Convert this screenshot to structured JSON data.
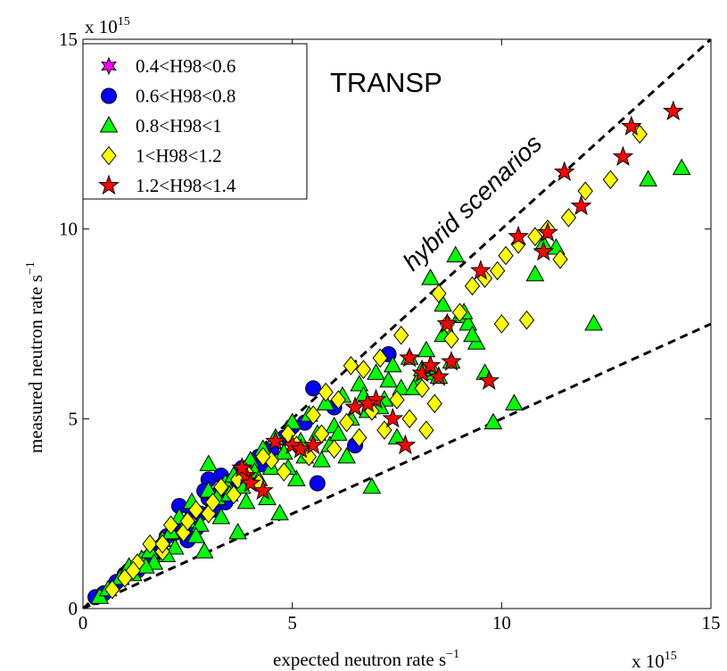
{
  "chart_data": {
    "type": "scatter",
    "title": "TRANSP",
    "annotation": "hybrid scenarios",
    "xlabel": "expected neutron rate  s",
    "xlabel_sup": "−1",
    "ylabel": "measured neutron rate  s",
    "ylabel_sup": "−1",
    "x_multiplier": "x 10",
    "x_multiplier_exp": "15",
    "y_multiplier": "x 10",
    "y_multiplier_exp": "15",
    "xlim": [
      0,
      15
    ],
    "ylim": [
      0,
      15
    ],
    "xticks": [
      0,
      5,
      10,
      15
    ],
    "yticks": [
      0,
      5,
      10,
      15
    ],
    "grid": false,
    "legend_position": "top-left",
    "reference_lines": [
      {
        "x": [
          0,
          15
        ],
        "y": [
          0,
          15
        ],
        "style": "dashed"
      },
      {
        "x": [
          0,
          15
        ],
        "y": [
          0,
          7.5
        ],
        "style": "dashed"
      }
    ],
    "series": [
      {
        "name": "0.4<H98<0.6",
        "marker": "hexagram",
        "color": "#ff00ff",
        "points": []
      },
      {
        "name": "0.6<H98<0.8",
        "marker": "circle",
        "color": "#0000ff",
        "points": [
          [
            0.3,
            0.3
          ],
          [
            0.5,
            0.4
          ],
          [
            0.8,
            0.7
          ],
          [
            1.0,
            0.9
          ],
          [
            1.3,
            1.0
          ],
          [
            1.5,
            1.3
          ],
          [
            1.8,
            1.5
          ],
          [
            2.0,
            1.9
          ],
          [
            2.2,
            2.0
          ],
          [
            2.4,
            2.2
          ],
          [
            2.6,
            2.6
          ],
          [
            2.8,
            2.5
          ],
          [
            3.0,
            2.9
          ],
          [
            3.0,
            3.4
          ],
          [
            3.2,
            3.0
          ],
          [
            3.3,
            3.5
          ],
          [
            3.5,
            3.3
          ],
          [
            3.6,
            3.1
          ],
          [
            3.8,
            3.7
          ],
          [
            4.0,
            3.5
          ],
          [
            4.2,
            4.0
          ],
          [
            4.5,
            4.2
          ],
          [
            4.8,
            4.5
          ],
          [
            5.0,
            4.8
          ],
          [
            5.3,
            4.9
          ],
          [
            5.5,
            5.8
          ],
          [
            5.6,
            3.3
          ],
          [
            6.0,
            5.3
          ],
          [
            6.5,
            4.3
          ],
          [
            7.3,
            6.7
          ],
          [
            2.7,
            2.1
          ],
          [
            2.5,
            1.8
          ],
          [
            3.1,
            2.6
          ],
          [
            4.3,
            3.8
          ],
          [
            2.3,
            2.7
          ],
          [
            3.4,
            2.8
          ],
          [
            1.1,
            1.0
          ],
          [
            2.9,
            3.1
          ]
        ]
      },
      {
        "name": "0.8<H98<1",
        "marker": "triangle",
        "color": "#00ff00",
        "points": [
          [
            0.4,
            0.3
          ],
          [
            0.6,
            0.5
          ],
          [
            0.9,
            0.8
          ],
          [
            1.1,
            1.1
          ],
          [
            1.4,
            1.3
          ],
          [
            1.6,
            1.5
          ],
          [
            1.9,
            1.8
          ],
          [
            2.1,
            2.0
          ],
          [
            2.3,
            2.4
          ],
          [
            2.5,
            2.3
          ],
          [
            2.6,
            2.8
          ],
          [
            2.8,
            2.2
          ],
          [
            3.0,
            3.1
          ],
          [
            3.0,
            3.8
          ],
          [
            3.2,
            2.9
          ],
          [
            3.4,
            3.3
          ],
          [
            3.6,
            3.5
          ],
          [
            3.8,
            3.2
          ],
          [
            4.0,
            3.9
          ],
          [
            4.1,
            3.6
          ],
          [
            4.3,
            4.2
          ],
          [
            4.5,
            3.7
          ],
          [
            4.6,
            4.5
          ],
          [
            4.8,
            4.1
          ],
          [
            5.0,
            4.9
          ],
          [
            5.2,
            4.4
          ],
          [
            5.4,
            5.1
          ],
          [
            5.6,
            4.6
          ],
          [
            5.8,
            5.4
          ],
          [
            6.0,
            4.8
          ],
          [
            6.2,
            5.6
          ],
          [
            6.4,
            5.0
          ],
          [
            6.6,
            5.9
          ],
          [
            6.8,
            5.2
          ],
          [
            7.0,
            6.2
          ],
          [
            7.2,
            5.5
          ],
          [
            7.4,
            6.4
          ],
          [
            7.6,
            5.8
          ],
          [
            7.8,
            6.6
          ],
          [
            8.0,
            6.0
          ],
          [
            8.2,
            6.8
          ],
          [
            8.4,
            6.2
          ],
          [
            8.6,
            7.2
          ],
          [
            8.8,
            6.5
          ],
          [
            9.0,
            7.7
          ],
          [
            9.2,
            7.5
          ],
          [
            9.4,
            7.0
          ],
          [
            9.6,
            6.2
          ],
          [
            9.8,
            4.9
          ],
          [
            10.3,
            5.4
          ],
          [
            10.8,
            8.8
          ],
          [
            11.0,
            9.6
          ],
          [
            11.3,
            9.5
          ],
          [
            12.2,
            7.5
          ],
          [
            13.5,
            11.3
          ],
          [
            14.3,
            11.6
          ],
          [
            8.3,
            8.7
          ],
          [
            8.6,
            8.0
          ],
          [
            8.9,
            9.3
          ],
          [
            9.1,
            7.8
          ],
          [
            6.9,
            3.2
          ],
          [
            7.5,
            4.5
          ],
          [
            5.7,
            3.9
          ],
          [
            4.7,
            2.5
          ],
          [
            3.7,
            2.0
          ],
          [
            2.9,
            1.5
          ],
          [
            4.4,
            2.9
          ],
          [
            5.1,
            3.4
          ],
          [
            6.3,
            4.0
          ],
          [
            1.2,
            0.9
          ],
          [
            1.7,
            1.2
          ],
          [
            2.2,
            1.6
          ],
          [
            2.7,
            1.9
          ],
          [
            3.3,
            2.4
          ],
          [
            3.9,
            2.8
          ],
          [
            4.9,
            3.7
          ],
          [
            5.9,
            4.3
          ],
          [
            6.7,
            5.6
          ],
          [
            7.3,
            6.0
          ],
          [
            8.1,
            6.3
          ],
          [
            3.5,
            3.0
          ],
          [
            4.2,
            3.4
          ],
          [
            5.3,
            4.0
          ],
          [
            6.1,
            4.6
          ],
          [
            7.1,
            5.3
          ],
          [
            7.9,
            5.8
          ],
          [
            8.5,
            6.1
          ],
          [
            9.3,
            7.2
          ],
          [
            2.0,
            1.4
          ],
          [
            1.5,
            1.1
          ]
        ]
      },
      {
        "name": "1<H98<1.2",
        "marker": "diamond",
        "color": "#ffff00",
        "points": [
          [
            0.7,
            0.5
          ],
          [
            1.0,
            0.8
          ],
          [
            1.3,
            1.2
          ],
          [
            1.6,
            1.7
          ],
          [
            1.9,
            1.5
          ],
          [
            2.1,
            2.2
          ],
          [
            2.4,
            2.0
          ],
          [
            2.7,
            2.6
          ],
          [
            3.0,
            2.5
          ],
          [
            3.3,
            3.2
          ],
          [
            3.6,
            3.0
          ],
          [
            3.9,
            3.6
          ],
          [
            4.2,
            3.3
          ],
          [
            4.5,
            3.9
          ],
          [
            4.8,
            3.6
          ],
          [
            5.1,
            4.3
          ],
          [
            5.4,
            4.0
          ],
          [
            5.7,
            4.6
          ],
          [
            6.0,
            4.2
          ],
          [
            6.3,
            4.9
          ],
          [
            6.6,
            4.5
          ],
          [
            6.9,
            5.2
          ],
          [
            7.2,
            4.7
          ],
          [
            7.5,
            5.5
          ],
          [
            7.8,
            5.0
          ],
          [
            8.1,
            5.8
          ],
          [
            8.4,
            5.4
          ],
          [
            8.7,
            7.5
          ],
          [
            9.0,
            7.8
          ],
          [
            9.3,
            8.5
          ],
          [
            9.6,
            8.7
          ],
          [
            9.9,
            8.9
          ],
          [
            10.1,
            9.3
          ],
          [
            10.4,
            9.6
          ],
          [
            10.8,
            9.8
          ],
          [
            11.1,
            10.0
          ],
          [
            11.4,
            9.2
          ],
          [
            11.6,
            10.3
          ],
          [
            12.0,
            11.0
          ],
          [
            12.6,
            11.3
          ],
          [
            13.3,
            12.5
          ],
          [
            8.5,
            8.3
          ],
          [
            8.8,
            7.1
          ],
          [
            7.6,
            7.2
          ],
          [
            7.1,
            6.6
          ],
          [
            6.7,
            6.3
          ],
          [
            6.1,
            5.5
          ],
          [
            5.5,
            5.1
          ],
          [
            4.9,
            4.6
          ],
          [
            4.3,
            4.0
          ],
          [
            3.7,
            3.4
          ],
          [
            3.1,
            2.8
          ],
          [
            2.5,
            2.3
          ],
          [
            1.9,
            1.7
          ],
          [
            1.2,
            1.0
          ],
          [
            10.6,
            7.6
          ],
          [
            10.0,
            7.5
          ],
          [
            8.2,
            4.7
          ],
          [
            6.4,
            6.4
          ],
          [
            5.8,
            5.7
          ]
        ]
      },
      {
        "name": "1.2<H98<1.4",
        "marker": "star",
        "color": "#ff0000",
        "points": [
          [
            3.9,
            3.5
          ],
          [
            4.0,
            3.3
          ],
          [
            4.3,
            3.1
          ],
          [
            4.6,
            4.4
          ],
          [
            5.0,
            4.3
          ],
          [
            5.2,
            4.2
          ],
          [
            5.5,
            4.3
          ],
          [
            6.5,
            5.3
          ],
          [
            7.0,
            5.5
          ],
          [
            7.4,
            5.0
          ],
          [
            7.7,
            4.3
          ],
          [
            7.8,
            6.6
          ],
          [
            8.1,
            6.2
          ],
          [
            8.3,
            6.4
          ],
          [
            8.5,
            6.1
          ],
          [
            8.7,
            7.5
          ],
          [
            9.5,
            8.9
          ],
          [
            9.7,
            6.0
          ],
          [
            10.4,
            9.8
          ],
          [
            11.0,
            9.4
          ],
          [
            11.1,
            9.9
          ],
          [
            11.5,
            11.5
          ],
          [
            11.9,
            10.6
          ],
          [
            12.9,
            11.9
          ],
          [
            13.1,
            12.7
          ],
          [
            14.1,
            13.1
          ],
          [
            8.8,
            6.5
          ],
          [
            6.8,
            5.4
          ],
          [
            3.8,
            3.7
          ]
        ]
      }
    ]
  }
}
